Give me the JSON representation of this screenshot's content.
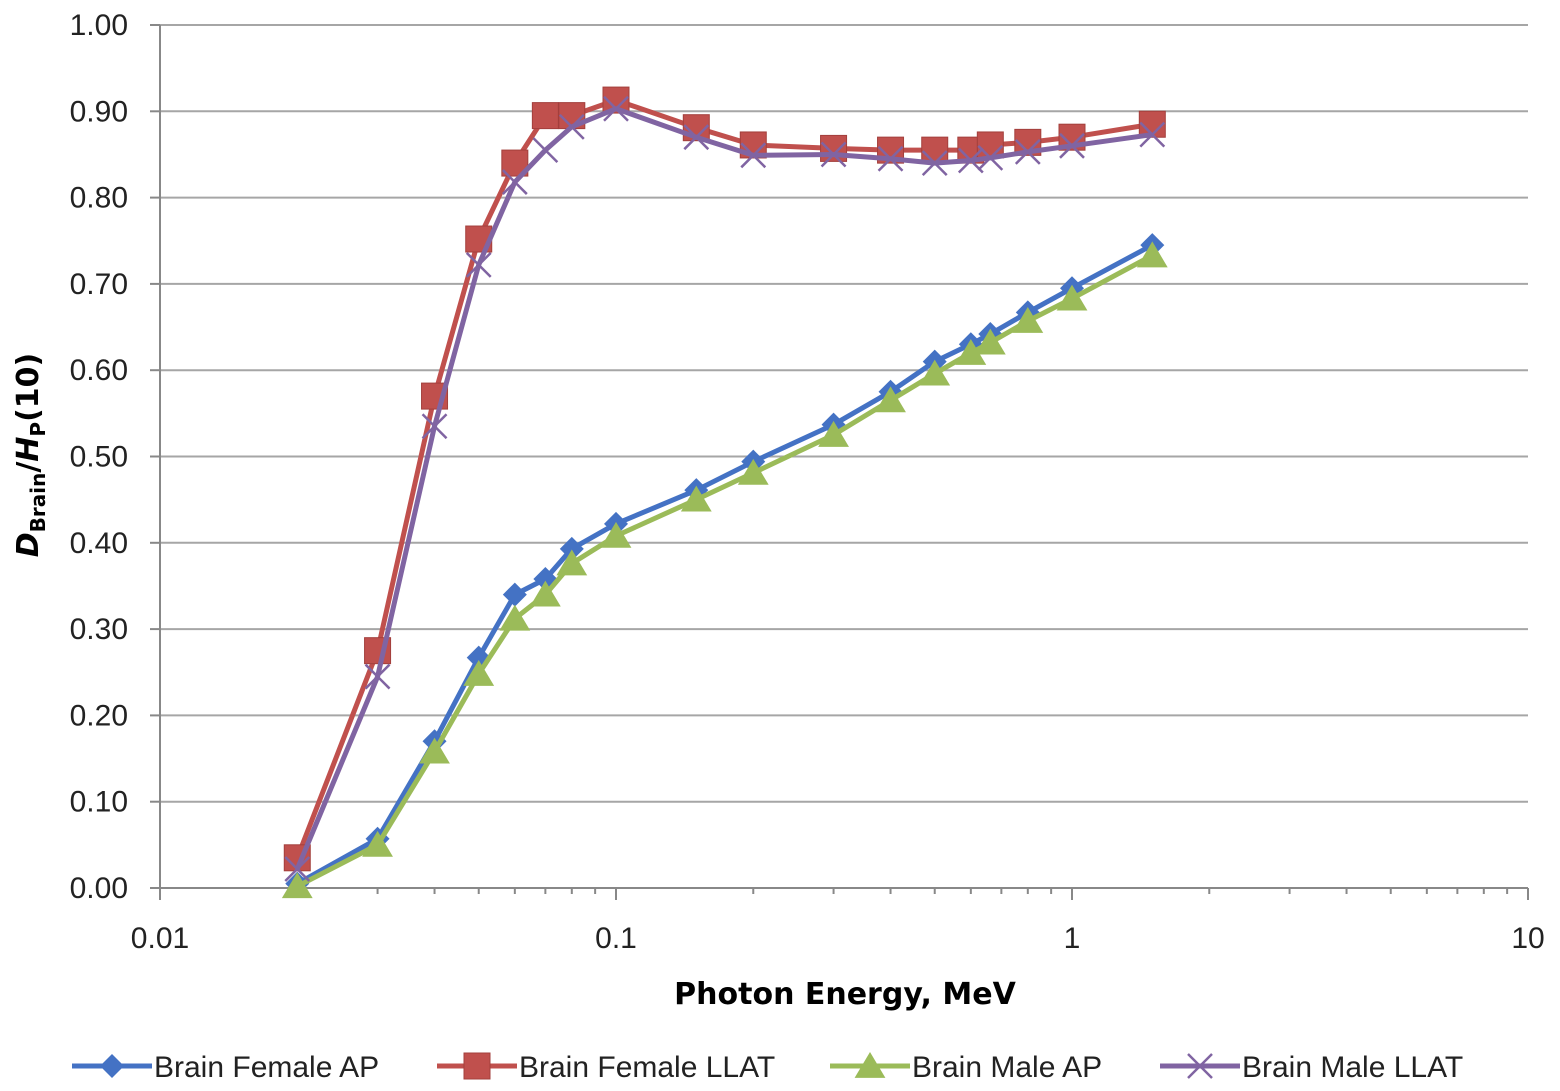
{
  "chart_data": {
    "type": "line",
    "x_scale": "log",
    "xlim": [
      0.01,
      10
    ],
    "ylim": [
      0,
      1.0
    ],
    "x_ticks": [
      0.01,
      0.1,
      1,
      10
    ],
    "x_tick_labels": [
      "0.01",
      "0.1",
      "1",
      "10"
    ],
    "y_ticks": [
      0,
      0.1,
      0.2,
      0.3,
      0.4,
      0.5,
      0.6,
      0.7,
      0.8,
      0.9,
      1.0
    ],
    "y_tick_labels": [
      "0.00",
      "0.10",
      "0.20",
      "0.30",
      "0.40",
      "0.50",
      "0.60",
      "0.70",
      "0.80",
      "0.90",
      "1.00"
    ],
    "xlabel": "Photon Energy, MeV",
    "ylabel": {
      "d": "D",
      "d_sub": "Brain",
      "slash": "/",
      "h": "H",
      "h_sub": "P",
      "tail": "(10)"
    },
    "grid": "horizontal",
    "legend": "bottom",
    "x": [
      0.02,
      0.03,
      0.04,
      0.05,
      0.06,
      0.07,
      0.08,
      0.1,
      0.15,
      0.2,
      0.3,
      0.4,
      0.5,
      0.6,
      0.662,
      0.8,
      1.0,
      1.5
    ],
    "series": [
      {
        "name": "Brain Female AP",
        "color": "#4472C4",
        "marker": "diamond",
        "values": [
          0.005,
          0.057,
          0.17,
          0.267,
          0.34,
          0.358,
          0.393,
          0.422,
          0.461,
          0.494,
          0.537,
          0.575,
          0.61,
          0.63,
          0.642,
          0.667,
          0.695,
          0.745
        ]
      },
      {
        "name": "Brain Female LLAT",
        "color": "#C0504D",
        "marker": "square",
        "values": [
          0.035,
          0.275,
          0.57,
          0.752,
          0.84,
          0.895,
          0.895,
          0.913,
          0.881,
          0.861,
          0.857,
          0.855,
          0.855,
          0.855,
          0.861,
          0.864,
          0.87,
          0.885
        ]
      },
      {
        "name": "Brain Male AP",
        "color": "#9BBB59",
        "marker": "triangle",
        "values": [
          0.002,
          0.05,
          0.158,
          0.248,
          0.312,
          0.34,
          0.376,
          0.408,
          0.45,
          0.481,
          0.525,
          0.565,
          0.596,
          0.62,
          0.632,
          0.657,
          0.683,
          0.733
        ]
      },
      {
        "name": "Brain Male LLAT",
        "color": "#8064A2",
        "marker": "x",
        "values": [
          0.022,
          0.245,
          0.535,
          0.722,
          0.818,
          0.855,
          0.882,
          0.903,
          0.87,
          0.849,
          0.85,
          0.845,
          0.84,
          0.843,
          0.846,
          0.853,
          0.86,
          0.873
        ]
      }
    ]
  }
}
